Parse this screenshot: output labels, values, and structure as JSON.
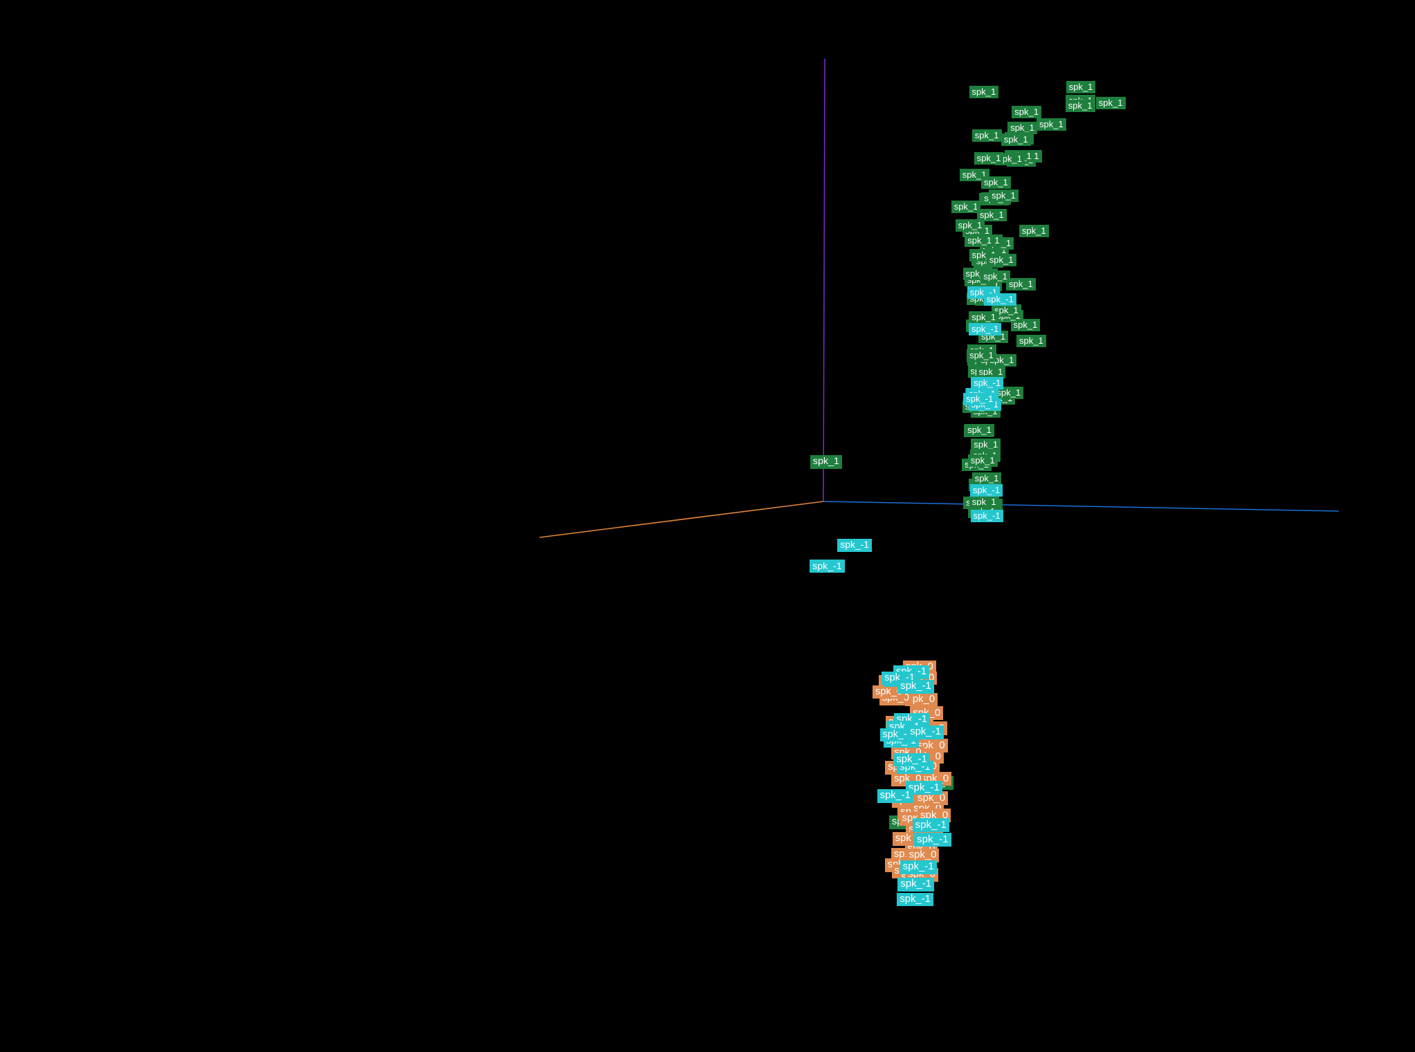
{
  "chart_data": {
    "type": "scatter",
    "title": "",
    "projection": "3d",
    "axes": [
      {
        "name": "x-axis",
        "color": "#e58a3a"
      },
      {
        "name": "y-axis",
        "color": "#7a2fd0"
      },
      {
        "name": "z-axis",
        "color": "#1c6fd8"
      }
    ],
    "legend": [
      {
        "label": "spk_1",
        "color": "#1f7f3e"
      },
      {
        "label": "spk_0",
        "color": "#e08a50"
      },
      {
        "label": "spk_-1",
        "color": "#25c7cf"
      }
    ],
    "series": [
      {
        "name": "spk_1",
        "label": "spk_1",
        "color": "#1f7f3e",
        "points": [
          {
            "x": 0.46,
            "y": 0.99,
            "z": 0.75
          },
          {
            "x": 0.62,
            "y": 0.99,
            "z": 0.65
          },
          {
            "x": 0.72,
            "y": 0.92,
            "z": 0.78
          },
          {
            "x": 0.3,
            "y": 0.94,
            "z": 0.72
          },
          {
            "x": 0.37,
            "y": 0.95,
            "z": 0.7
          },
          {
            "x": 0.48,
            "y": 0.95,
            "z": 0.76
          },
          {
            "x": 0.56,
            "y": 0.94,
            "z": 0.7
          },
          {
            "x": 0.44,
            "y": 0.87,
            "z": 0.62
          },
          {
            "x": 0.76,
            "y": 0.85,
            "z": 0.8
          },
          {
            "x": 0.2,
            "y": 0.88,
            "z": 0.55
          },
          {
            "x": 0.27,
            "y": 0.85,
            "z": 0.52
          },
          {
            "x": 0.34,
            "y": 0.82,
            "z": 0.58
          },
          {
            "x": 0.38,
            "y": 0.78,
            "z": 0.5
          },
          {
            "x": 0.42,
            "y": 0.73,
            "z": 0.56
          },
          {
            "x": 0.63,
            "y": 0.75,
            "z": 0.68
          },
          {
            "x": 0.13,
            "y": 0.8,
            "z": 0.45
          },
          {
            "x": 0.2,
            "y": 0.8,
            "z": 0.47
          },
          {
            "x": 0.14,
            "y": 0.74,
            "z": 0.41
          },
          {
            "x": 0.24,
            "y": 0.72,
            "z": 0.48
          },
          {
            "x": 0.3,
            "y": 0.7,
            "z": 0.44
          },
          {
            "x": 0.35,
            "y": 0.65,
            "z": 0.49
          },
          {
            "x": 0.54,
            "y": 0.68,
            "z": 0.58
          },
          {
            "x": 0.6,
            "y": 0.63,
            "z": 0.66
          },
          {
            "x": 0.76,
            "y": 0.57,
            "z": 0.8
          },
          {
            "x": 0.11,
            "y": 0.6,
            "z": 0.4
          },
          {
            "x": 0.19,
            "y": 0.57,
            "z": 0.42
          },
          {
            "x": 0.27,
            "y": 0.54,
            "z": 0.45
          },
          {
            "x": 0.44,
            "y": 0.56,
            "z": 0.55
          },
          {
            "x": 0.52,
            "y": 0.52,
            "z": 0.6
          },
          {
            "x": 0.61,
            "y": 0.46,
            "z": 0.64
          },
          {
            "x": 0.78,
            "y": 0.48,
            "z": 0.82
          },
          {
            "x": 0.85,
            "y": 0.45,
            "z": 0.87
          },
          {
            "x": 0.04,
            "y": 0.43,
            "z": 0.38
          },
          {
            "x": 0.12,
            "y": 0.45,
            "z": 0.42
          },
          {
            "x": 0.22,
            "y": 0.4,
            "z": 0.45
          },
          {
            "x": 0.35,
            "y": 0.36,
            "z": 0.5
          },
          {
            "x": 0.48,
            "y": 0.38,
            "z": 0.57
          },
          {
            "x": 0.57,
            "y": 0.4,
            "z": 0.62
          },
          {
            "x": 0.64,
            "y": 0.36,
            "z": 0.66
          },
          {
            "x": 0.74,
            "y": 0.31,
            "z": 0.75
          },
          {
            "x": 0.82,
            "y": 0.33,
            "z": 0.81
          },
          {
            "x": 0.04,
            "y": 0.33,
            "z": 0.35
          },
          {
            "x": 0.12,
            "y": 0.31,
            "z": 0.39
          },
          {
            "x": 0.24,
            "y": 0.3,
            "z": 0.45
          },
          {
            "x": 0.32,
            "y": 0.24,
            "z": 0.49
          },
          {
            "x": 0.42,
            "y": 0.27,
            "z": 0.54
          },
          {
            "x": 0.58,
            "y": 0.22,
            "z": 0.62
          },
          {
            "x": 0.64,
            "y": 0.28,
            "z": 0.65
          },
          {
            "x": 0.7,
            "y": 0.2,
            "z": 0.7
          },
          {
            "x": 0.3,
            "y": 0.14,
            "z": 0.48
          },
          {
            "x": 0.43,
            "y": 0.15,
            "z": 0.55
          },
          {
            "x": 0.55,
            "y": 0.14,
            "z": 0.6
          },
          {
            "x": 0.22,
            "y": 0.12,
            "z": 0.43
          },
          {
            "x": 0.38,
            "y": 0.08,
            "z": 0.52
          },
          {
            "x": 0.49,
            "y": 0.05,
            "z": 0.57
          },
          {
            "x": 0.33,
            "y": 0.03,
            "z": 0.5
          },
          {
            "x": 0.16,
            "y": 0.02,
            "z": 0.4
          },
          {
            "x": 0.66,
            "y": 0.12,
            "z": 0.68
          },
          {
            "x": 0.4,
            "y": 0.02,
            "z": 0.53
          },
          {
            "x": 0.5,
            "y": 0.6,
            "z": 0.59
          },
          {
            "x": 0.68,
            "y": 0.56,
            "z": 0.69
          },
          {
            "x": 0.7,
            "y": 0.72,
            "z": 0.71
          },
          {
            "x": 0.86,
            "y": 0.7,
            "z": 0.88
          },
          {
            "x": 0.26,
            "y": 0.62,
            "z": 0.46
          },
          {
            "x": 0.33,
            "y": 0.58,
            "z": 0.5
          },
          {
            "x": 0.4,
            "y": 0.6,
            "z": 0.53
          },
          {
            "x": 0.47,
            "y": 0.64,
            "z": 0.56
          },
          {
            "x": 0.58,
            "y": 0.56,
            "z": 0.62
          },
          {
            "x": 0.64,
            "y": 0.58,
            "z": 0.65
          },
          {
            "x": 0.79,
            "y": 0.4,
            "z": 0.78
          },
          {
            "x": 0.68,
            "y": 0.4,
            "z": 0.68
          },
          {
            "x": 0.54,
            "y": 0.3,
            "z": 0.6
          },
          {
            "x": 0.45,
            "y": 0.21,
            "z": 0.55
          },
          {
            "x": -0.1,
            "y": 0.08,
            "z": -0.05
          },
          {
            "x": 0.05,
            "y": 0.52,
            "z": 0.36
          },
          {
            "x": 0.62,
            "y": 0.84,
            "z": 0.66
          },
          {
            "x": 0.5,
            "y": 0.88,
            "z": 0.59
          },
          {
            "x": 0.18,
            "y": 0.48,
            "z": 0.42
          },
          {
            "x": 0.28,
            "y": 0.49,
            "z": 0.46
          },
          {
            "x": 0.4,
            "y": 0.46,
            "z": 0.53
          },
          {
            "x": 0.72,
            "y": 0.62,
            "z": 0.74
          },
          {
            "x": -0.7,
            "y": -0.6,
            "z": -0.2
          },
          {
            "x": -0.75,
            "y": -0.68,
            "z": -0.22
          },
          {
            "x": -0.95,
            "y": -0.72,
            "z": -0.3
          },
          {
            "x": -0.62,
            "y": -0.78,
            "z": -0.18
          }
        ]
      },
      {
        "name": "spk_0",
        "label": "spk_0",
        "color": "#e08a50",
        "points": [
          {
            "x": -0.85,
            "y": -0.45,
            "z": -0.28
          },
          {
            "x": -0.8,
            "y": -0.47,
            "z": -0.25
          },
          {
            "x": -0.82,
            "y": -0.52,
            "z": -0.26
          },
          {
            "x": -0.86,
            "y": -0.58,
            "z": -0.29
          },
          {
            "x": -0.93,
            "y": -0.56,
            "z": -0.31
          },
          {
            "x": -0.98,
            "y": -0.6,
            "z": -0.33
          },
          {
            "x": -1.0,
            "y": -0.64,
            "z": -0.34
          },
          {
            "x": -0.95,
            "y": -0.66,
            "z": -0.32
          },
          {
            "x": -0.9,
            "y": -0.68,
            "z": -0.3
          },
          {
            "x": -0.87,
            "y": -0.71,
            "z": -0.28
          },
          {
            "x": -0.82,
            "y": -0.66,
            "z": -0.27
          },
          {
            "x": -0.78,
            "y": -0.69,
            "z": -0.25
          },
          {
            "x": -0.74,
            "y": -0.66,
            "z": -0.23
          },
          {
            "x": -0.7,
            "y": -0.63,
            "z": -0.22
          },
          {
            "x": -0.66,
            "y": -0.66,
            "z": -0.21
          },
          {
            "x": -0.72,
            "y": -0.74,
            "z": -0.23
          },
          {
            "x": -0.76,
            "y": -0.77,
            "z": -0.24
          },
          {
            "x": -0.82,
            "y": -0.79,
            "z": -0.27
          },
          {
            "x": -0.88,
            "y": -0.82,
            "z": -0.29
          },
          {
            "x": -0.93,
            "y": -0.84,
            "z": -0.31
          },
          {
            "x": -0.97,
            "y": -0.78,
            "z": -0.33
          },
          {
            "x": -1.02,
            "y": -0.76,
            "z": -0.35
          },
          {
            "x": -1.05,
            "y": -0.72,
            "z": -0.36
          },
          {
            "x": -0.7,
            "y": -0.86,
            "z": -0.22
          },
          {
            "x": -0.66,
            "y": -0.88,
            "z": -0.21
          },
          {
            "x": -0.72,
            "y": -0.9,
            "z": -0.23
          },
          {
            "x": -0.8,
            "y": -0.92,
            "z": -0.26
          },
          {
            "x": -0.86,
            "y": -0.92,
            "z": -0.28
          },
          {
            "x": -0.76,
            "y": -0.58,
            "z": -0.24
          },
          {
            "x": -0.68,
            "y": -0.56,
            "z": -0.22
          },
          {
            "x": -0.62,
            "y": -0.5,
            "z": -0.2
          },
          {
            "x": -0.56,
            "y": -0.48,
            "z": -0.18
          },
          {
            "x": -0.6,
            "y": -0.46,
            "z": -0.19
          },
          {
            "x": -0.76,
            "y": -0.83,
            "z": -0.25
          },
          {
            "x": -0.84,
            "y": -0.86,
            "z": -0.27
          },
          {
            "x": -0.9,
            "y": -0.88,
            "z": -0.3
          },
          {
            "x": -1.03,
            "y": -0.8,
            "z": -0.35
          },
          {
            "x": -0.7,
            "y": -0.69,
            "z": -0.22
          }
        ]
      },
      {
        "name": "spk_-1",
        "label": "spk_-1",
        "color": "#25c7cf",
        "points": [
          {
            "x": 0.02,
            "y": 0.48,
            "z": 0.32
          },
          {
            "x": 0.07,
            "y": 0.47,
            "z": 0.38
          },
          {
            "x": 0.05,
            "y": 0.4,
            "z": 0.34
          },
          {
            "x": 0.06,
            "y": 0.28,
            "z": 0.35
          },
          {
            "x": 0.05,
            "y": 0.23,
            "z": 0.34
          },
          {
            "x": 0.08,
            "y": 0.04,
            "z": 0.36
          },
          {
            "x": 0.06,
            "y": -0.02,
            "z": 0.35
          },
          {
            "x": -0.02,
            "y": -0.1,
            "z": 0.05
          },
          {
            "x": -0.05,
            "y": -0.15,
            "z": -0.02
          },
          {
            "x": 0.55,
            "y": 0.3,
            "z": 0.61
          },
          {
            "x": 0.45,
            "y": 0.28,
            "z": 0.55
          },
          {
            "x": -0.73,
            "y": -0.45,
            "z": -0.23
          },
          {
            "x": -0.64,
            "y": -0.46,
            "z": -0.2
          },
          {
            "x": -0.58,
            "y": -0.45,
            "z": -0.17
          },
          {
            "x": -0.8,
            "y": -0.49,
            "z": -0.26
          },
          {
            "x": -0.75,
            "y": -0.56,
            "z": -0.24
          },
          {
            "x": -0.67,
            "y": -0.57,
            "z": -0.21
          },
          {
            "x": -0.55,
            "y": -0.59,
            "z": -0.15
          },
          {
            "x": -0.5,
            "y": -0.57,
            "z": -0.13
          },
          {
            "x": -0.89,
            "y": -0.6,
            "z": -0.29
          },
          {
            "x": -0.78,
            "y": -0.67,
            "z": -0.25
          },
          {
            "x": -0.75,
            "y": -0.65,
            "z": -0.24
          },
          {
            "x": -0.94,
            "y": -0.73,
            "z": -0.32
          },
          {
            "x": -1.0,
            "y": -0.82,
            "z": -0.34
          },
          {
            "x": -1.08,
            "y": -0.86,
            "z": -0.38
          },
          {
            "x": -0.62,
            "y": -0.72,
            "z": -0.2
          },
          {
            "x": -0.83,
            "y": -0.9,
            "z": -0.27
          },
          {
            "x": -0.84,
            "y": -0.94,
            "z": -0.28
          },
          {
            "x": -0.8,
            "y": -0.97,
            "z": -0.26
          }
        ]
      }
    ]
  }
}
